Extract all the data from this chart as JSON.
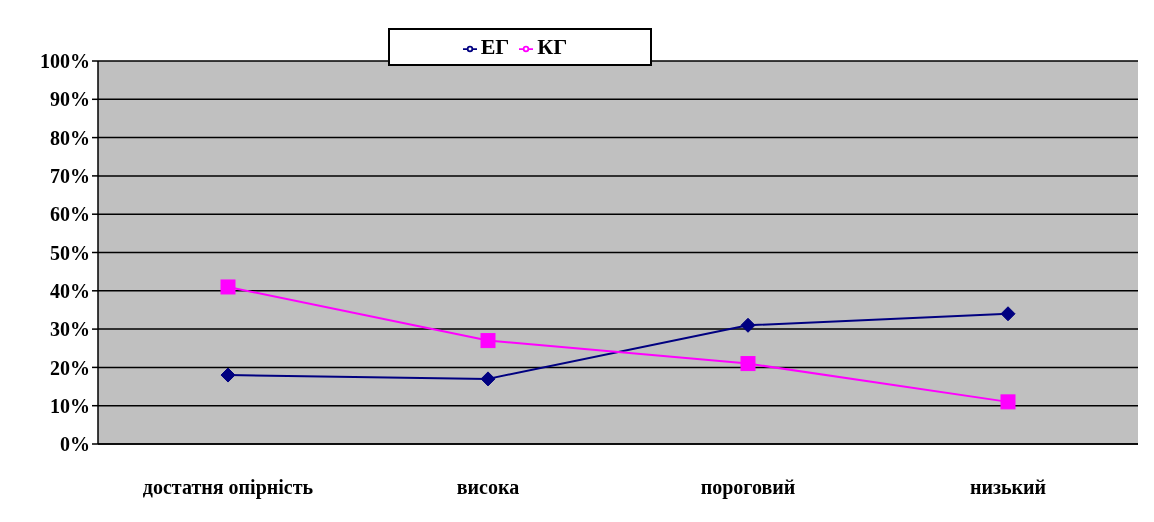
{
  "chart_data": {
    "type": "line",
    "categories": [
      "достатня опірність",
      "висока",
      "пороговий",
      "низький"
    ],
    "series": [
      {
        "name": "ЕГ",
        "color": "#000080",
        "values": [
          18,
          17,
          31,
          34
        ],
        "marker": "diamond"
      },
      {
        "name": "КГ",
        "color": "#ff00ff",
        "values": [
          41,
          27,
          21,
          11
        ],
        "marker": "square"
      }
    ],
    "ylim": [
      0,
      100
    ],
    "yticks": [
      {
        "value": 0,
        "label": "0%"
      },
      {
        "value": 10,
        "label": "10%"
      },
      {
        "value": 20,
        "label": "20%"
      },
      {
        "value": 30,
        "label": "30%"
      },
      {
        "value": 40,
        "label": "40%"
      },
      {
        "value": 50,
        "label": "50%"
      },
      {
        "value": 60,
        "label": "60%"
      },
      {
        "value": 70,
        "label": "70%"
      },
      {
        "value": 80,
        "label": "80%"
      },
      {
        "value": 90,
        "label": "90%"
      },
      {
        "value": 100,
        "label": "100%"
      }
    ],
    "grid": "y",
    "legend": "top"
  }
}
